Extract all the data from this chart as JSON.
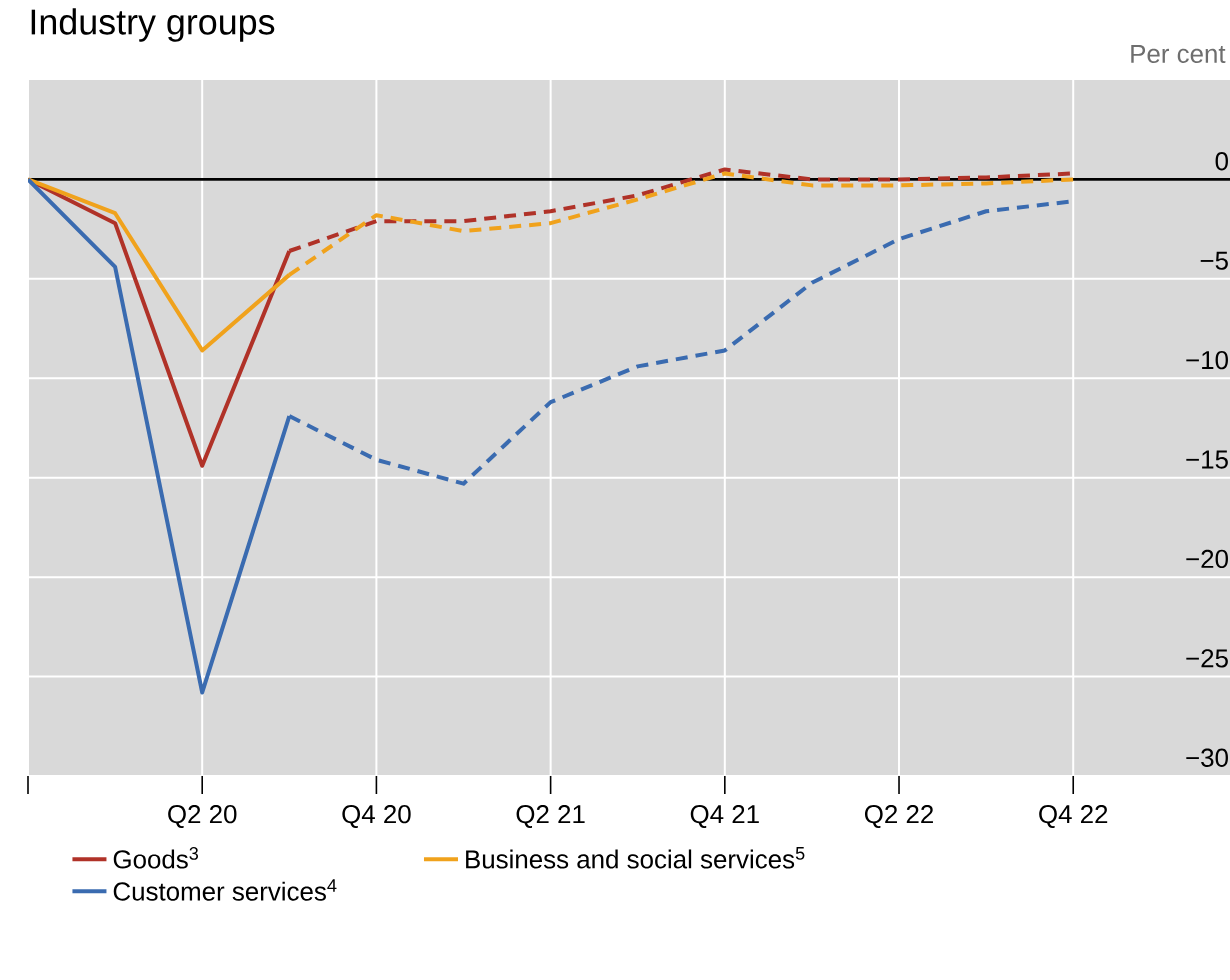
{
  "chart_data": {
    "type": "line",
    "title": "Industry groups",
    "ylabel": "Per cent",
    "categories": [
      null,
      null,
      "Q2 20",
      null,
      "Q4 20",
      null,
      "Q2 21",
      null,
      "Q4 21",
      null,
      "Q2 22",
      null,
      "Q4 22"
    ],
    "series": [
      {
        "name": "Goods$^{3}$",
        "color": "#b03228",
        "line_style": "solid",
        "values": [
          0,
          -2.2,
          -14.4,
          -3.6,
          null,
          null,
          null,
          null,
          null,
          null,
          null,
          null,
          null
        ]
      },
      {
        "name": "Business and social services$^{5}$",
        "color": "#f0a21c",
        "line_style": "solid",
        "values": [
          0,
          -1.7,
          -8.6,
          -4.8,
          null,
          null,
          null,
          null,
          null,
          null,
          null,
          null,
          null
        ]
      },
      {
        "name": "Customer services$^{4}$",
        "color": "#3a6bb0",
        "line_style": "solid",
        "values": [
          0,
          -4.4,
          -25.8,
          -11.9,
          null,
          null,
          null,
          null,
          null,
          null,
          null,
          null,
          null
        ]
      },
      {
        "color": "#b03228",
        "line_style": "dashed",
        "values": [
          null,
          null,
          null,
          -3.6,
          -2.1,
          -2.1,
          -1.6,
          -0.8,
          0.5,
          0,
          0,
          0.1,
          0.3
        ]
      },
      {
        "color": "#f0a21c",
        "line_style": "dashed",
        "values": [
          null,
          null,
          null,
          -4.8,
          -1.8,
          -2.6,
          -2.2,
          -1.0,
          0.3,
          -0.3,
          -0.3,
          -0.2,
          0
        ]
      },
      {
        "color": "#3a6bb0",
        "line_style": "dashed",
        "values": [
          null,
          null,
          null,
          -11.9,
          -14.1,
          -15.3,
          -11.2,
          -9.4,
          -8.6,
          -5.2,
          -3.0,
          -1.6,
          -1.1
        ]
      }
    ],
    "ylim": [
      -30,
      5
    ],
    "yticks": [
      0,
      {
        "value": -5,
        "label": "−5"
      },
      {
        "value": -10,
        "label": "−10"
      },
      {
        "value": -15,
        "label": "−15"
      },
      {
        "value": -20,
        "label": "−20"
      },
      {
        "value": -25,
        "label": "−25"
      },
      {
        "value": -30,
        "label": "−30"
      }
    ],
    "grid": true,
    "legend": "bottom",
    "marker": "none",
    "ref_lines": [
      {
        "axis": "y",
        "value": 0,
        "color": "#000000"
      }
    ]
  }
}
